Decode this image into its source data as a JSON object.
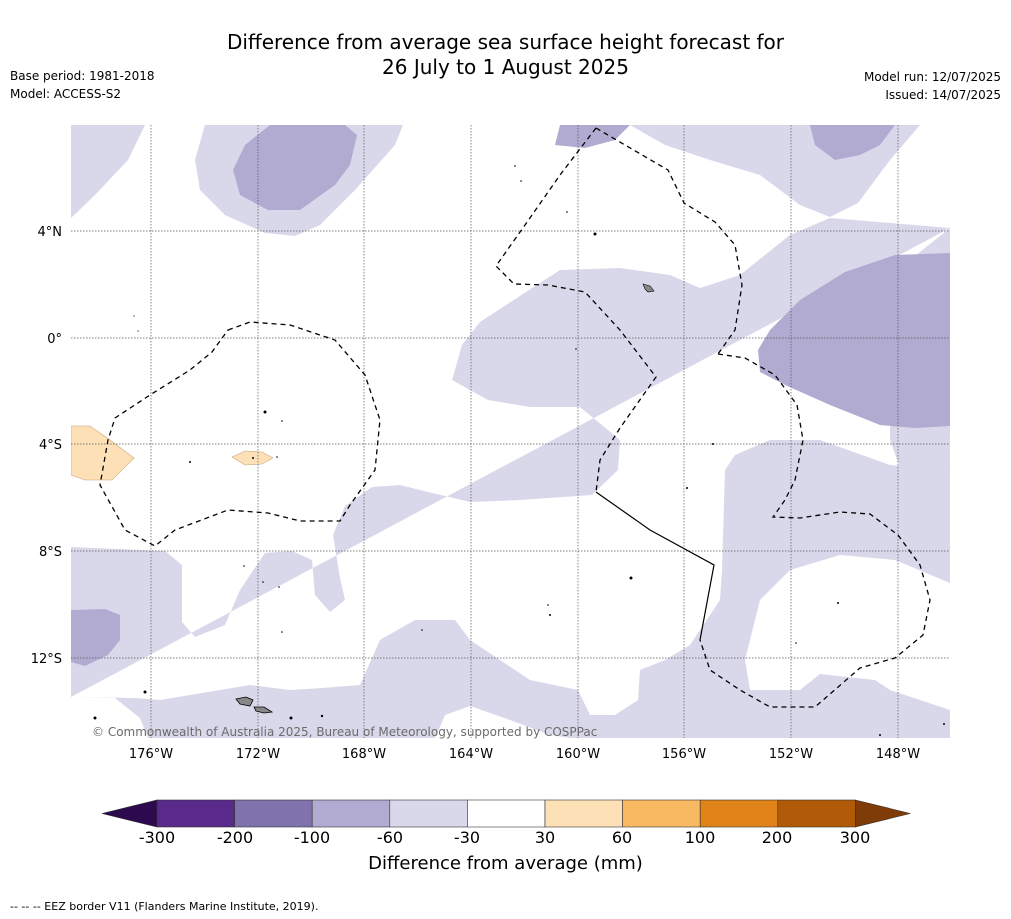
{
  "title_line1": "Difference from average sea surface height forecast for",
  "title_line2": "26 July to 1 August 2025",
  "meta_left": {
    "base_period": "Base period: 1981-2018",
    "model": "Model: ACCESS-S2"
  },
  "meta_right": {
    "model_run": "Model run: 12/07/2025",
    "issued": "Issued: 14/07/2025"
  },
  "copyright": "© Commonwealth of Australia 2025, Bureau of Meteorology, supported by COSPPac",
  "axes": {
    "lon_labels": [
      "176°W",
      "172°W",
      "168°W",
      "164°W",
      "160°W",
      "156°W",
      "152°W",
      "148°W"
    ],
    "lat_labels": [
      "4°N",
      "0°",
      "4°S",
      "8°S",
      "12°S"
    ]
  },
  "colorbar": {
    "ticks": [
      "-300",
      "-200",
      "-100",
      "-60",
      "-30",
      "30",
      "60",
      "100",
      "200",
      "300"
    ],
    "colors": [
      "#2d0a4e",
      "#5a2a8a",
      "#8073ad",
      "#b1abd2",
      "#d8d8ea",
      "#ffffff",
      "#fde0b6",
      "#f9b862",
      "#e08318",
      "#b15a08",
      "#7f3b08"
    ],
    "label": "Difference from average (mm)"
  },
  "footnote": "--  --  -- EEZ border V11 (Flanders Marine Institute, 2019)."
}
